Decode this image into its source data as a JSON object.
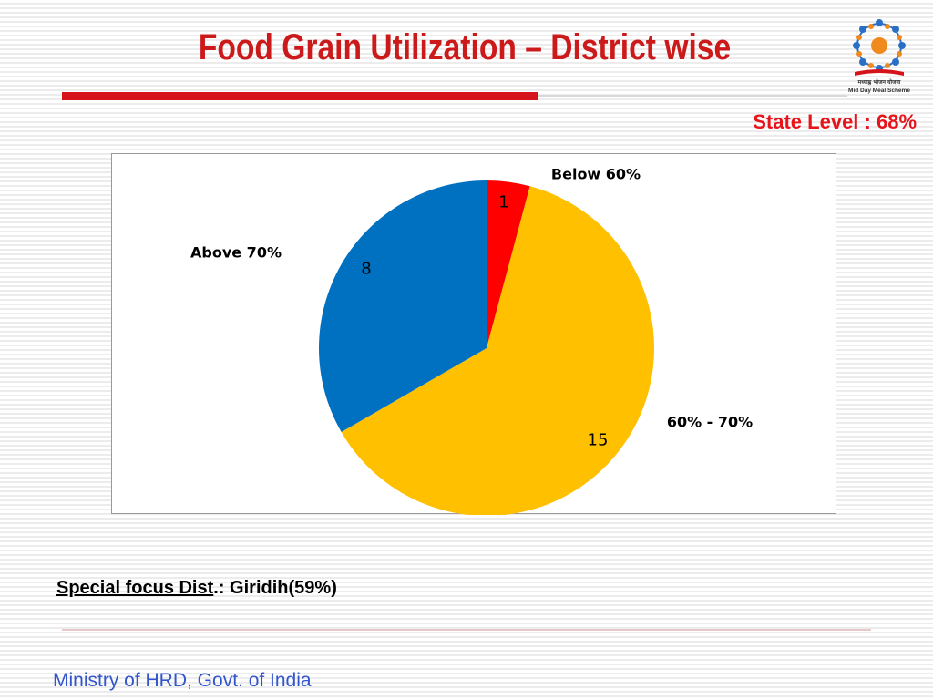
{
  "slide": {
    "title": "Food Grain Utilization – District wise",
    "state_level": "State Level : 68%",
    "special_focus_label": "Special focus Dist",
    "special_focus_value": ".: Giridih(59%)",
    "footer": "Ministry of HRD, Govt. of India",
    "logo": {
      "icon": "mid-day-meal-scheme-logo",
      "hindi_text": "मध्याह्न भोजन योजना",
      "english_text": "Mid Day Meal Scheme"
    }
  },
  "colors": {
    "title": "#cc1a1a",
    "accent_red": "#e8141b",
    "footer": "#3355cc",
    "below_60": "#ff0000",
    "between_60_70": "#ffc000",
    "above_70": "#0070c0"
  },
  "chart_data": {
    "type": "pie",
    "slices": [
      {
        "label": "Below 60%",
        "value": 1,
        "color": "#ff0000"
      },
      {
        "label": "60% - 70%",
        "value": 15,
        "color": "#ffc000"
      },
      {
        "label": "Above 70%",
        "value": 8,
        "color": "#0070c0"
      }
    ],
    "legend": "none",
    "start_angle": "top, clockwise"
  }
}
